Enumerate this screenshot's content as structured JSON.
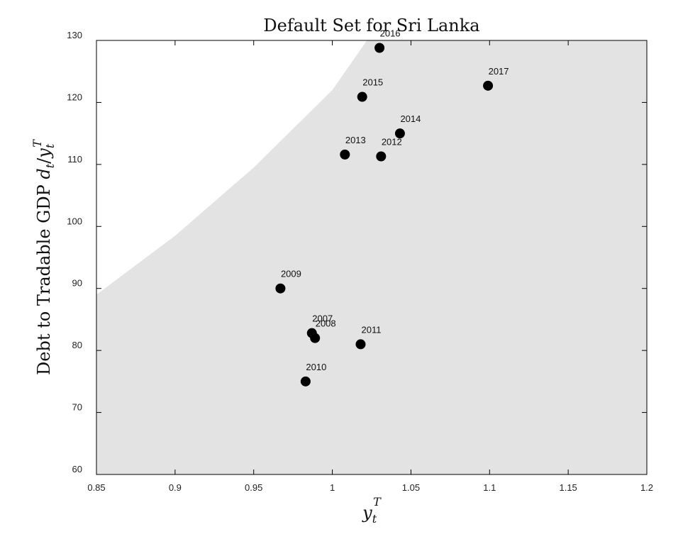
{
  "chart_data": {
    "type": "scatter",
    "title": "Default Set for Sri Lanka",
    "xlabel": "y_t^T",
    "ylabel": "Debt to Tradable GDP d_t/y_t^T",
    "xlim": [
      0.85,
      1.2
    ],
    "ylim": [
      60,
      130
    ],
    "xticks": [
      0.85,
      0.9,
      0.95,
      1,
      1.05,
      1.1,
      1.15,
      1.2
    ],
    "xtick_labels": [
      "0.85",
      "0.9",
      "0.95",
      "1",
      "1.05",
      "1.1",
      "1.15",
      "1.2"
    ],
    "yticks": [
      60,
      70,
      80,
      90,
      100,
      110,
      120,
      130
    ],
    "ytick_labels": [
      "60",
      "70",
      "80",
      "90",
      "100",
      "110",
      "120",
      "130"
    ],
    "grid": false,
    "region": {
      "fill_color": "#e3e3e3",
      "boundary": [
        [
          0.85,
          89
        ],
        [
          0.9,
          98.5
        ],
        [
          0.95,
          109.5
        ],
        [
          1.0,
          122
        ],
        [
          1.022,
          130
        ]
      ]
    },
    "points": [
      {
        "label": "2007",
        "x": 0.987,
        "y": 82.8
      },
      {
        "label": "2008",
        "x": 0.989,
        "y": 82.0
      },
      {
        "label": "2009",
        "x": 0.967,
        "y": 90.0
      },
      {
        "label": "2010",
        "x": 0.983,
        "y": 75.0
      },
      {
        "label": "2011",
        "x": 1.018,
        "y": 81.0
      },
      {
        "label": "2012",
        "x": 1.031,
        "y": 111.3
      },
      {
        "label": "2013",
        "x": 1.008,
        "y": 111.6
      },
      {
        "label": "2014",
        "x": 1.043,
        "y": 115.0
      },
      {
        "label": "2015",
        "x": 1.019,
        "y": 120.9
      },
      {
        "label": "2016",
        "x": 1.03,
        "y": 128.8
      },
      {
        "label": "2017",
        "x": 1.099,
        "y": 122.7
      }
    ],
    "marker_color": "#000000"
  }
}
